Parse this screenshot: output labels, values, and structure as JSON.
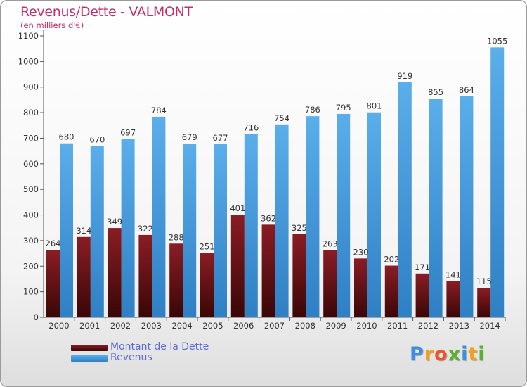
{
  "title": "Revenus/Dette - VALMONT",
  "subtitle": "(en milliers d'€)",
  "colors": {
    "dette_top": "#8a1d24",
    "dette_bottom": "#3a0606",
    "revenus_top": "#5aaeea",
    "revenus_bottom": "#2f7fc4",
    "label": "#5b6bd6",
    "title": "#c0306a"
  },
  "logo": {
    "letters": [
      {
        "char": "P",
        "color": "#3d8ee0"
      },
      {
        "char": "r",
        "color": "#f0a020"
      },
      {
        "char": "o",
        "color": "#e8562a"
      },
      {
        "char": "x",
        "color": "#5cb030"
      },
      {
        "char": "i",
        "color": "#3d8ee0"
      },
      {
        "char": "t",
        "color": "#f0a020"
      },
      {
        "char": "i",
        "color": "#5cb030"
      }
    ]
  },
  "chart_data": {
    "type": "bar",
    "categories": [
      "2000",
      "2001",
      "2002",
      "2003",
      "2004",
      "2005",
      "2006",
      "2007",
      "2008",
      "2009",
      "2010",
      "2011",
      "2012",
      "2013",
      "2014"
    ],
    "series": [
      {
        "name": "Montant de la Dette",
        "values": [
          264,
          314,
          349,
          322,
          288,
          251,
          401,
          362,
          325,
          263,
          230,
          202,
          171,
          141,
          115
        ]
      },
      {
        "name": "Revenus",
        "values": [
          680,
          670,
          697,
          784,
          679,
          677,
          716,
          754,
          786,
          795,
          801,
          919,
          855,
          864,
          1055
        ]
      }
    ],
    "yticks": [
      0,
      100,
      200,
      300,
      400,
      500,
      600,
      700,
      800,
      900,
      1000,
      1100
    ],
    "ylim": [
      0,
      1100
    ],
    "grid": false,
    "legend": "bottom-left"
  }
}
